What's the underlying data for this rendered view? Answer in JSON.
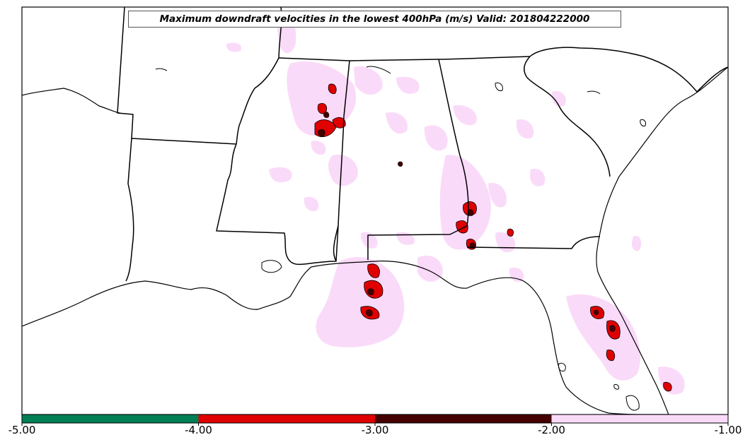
{
  "title": "Maximum downdraft velocities in the lowest 400hPa (m/s) Valid: 201804222000",
  "colorbar": {
    "bins": [
      {
        "from": -5.0,
        "to": -4.0,
        "color": "#007f55"
      },
      {
        "from": -4.0,
        "to": -3.0,
        "color": "#e00000"
      },
      {
        "from": -3.0,
        "to": -2.0,
        "color": "#450000"
      },
      {
        "from": -2.0,
        "to": -1.0,
        "color": "#fadaf9"
      }
    ],
    "tick_labels": [
      "-5.00",
      "-4.00",
      "-3.00",
      "-2.00",
      "-1.00"
    ]
  },
  "colors": {
    "light_downdraft": "#fadaf9",
    "moderate_downdraft": "#e00000",
    "strong_downdraft": "#450000",
    "land": "#ffffff",
    "borders": "#000000"
  }
}
